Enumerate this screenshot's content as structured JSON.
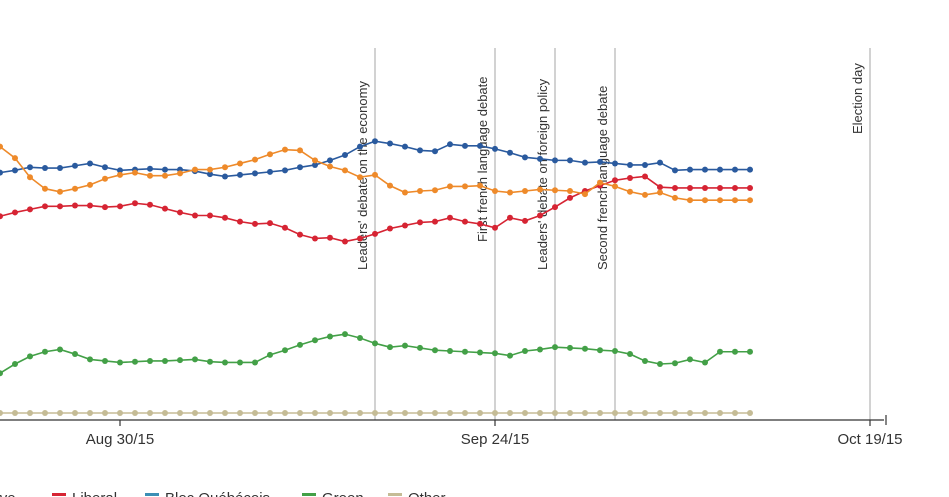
{
  "chart_data": {
    "type": "line",
    "title": "",
    "xlabel": "",
    "ylabel": "",
    "x_tick_labels": [
      "Aug 30/15",
      "Sep 24/15",
      "Oct 19/15"
    ],
    "x_tick_days": [
      27,
      52,
      77
    ],
    "x_range_days": [
      19,
      78
    ],
    "ylim": [
      0,
      45
    ],
    "grid": false,
    "events": [
      {
        "day": 44,
        "label": "Leaders' debate on the economy"
      },
      {
        "day": 52,
        "label": "First french language debate"
      },
      {
        "day": 56,
        "label": "Leaders' debate on foreign policy"
      },
      {
        "day": 60,
        "label": "Second french language debate"
      },
      {
        "day": 77,
        "label": "Election day"
      }
    ],
    "x_days": [
      19,
      20,
      21,
      22,
      23,
      24,
      25,
      26,
      27,
      28,
      29,
      30,
      31,
      32,
      33,
      34,
      35,
      36,
      37,
      38,
      39,
      40,
      41,
      42,
      43,
      44,
      45,
      46,
      47,
      48,
      49,
      50,
      51,
      52,
      53,
      54,
      55,
      56,
      57,
      58,
      59,
      60,
      61,
      62,
      63,
      64,
      65,
      66,
      67,
      68,
      69
    ],
    "legend_position": "bottom",
    "series": [
      {
        "name": "Conservative",
        "color": "#2a5a9e",
        "values": [
          32.2,
          32.5,
          32.9,
          32.8,
          32.8,
          33.1,
          33.4,
          32.9,
          32.5,
          32.6,
          32.7,
          32.6,
          32.6,
          32.4,
          32.0,
          31.7,
          31.9,
          32.1,
          32.3,
          32.5,
          32.9,
          33.2,
          33.8,
          34.5,
          35.6,
          36.3,
          36.0,
          35.6,
          35.1,
          35.0,
          35.9,
          35.7,
          35.7,
          35.3,
          34.8,
          34.2,
          34.0,
          33.8,
          33.8,
          33.5,
          33.6,
          33.4,
          33.2,
          33.2,
          33.5,
          32.5,
          32.6,
          32.6,
          32.6,
          32.6,
          32.6
        ]
      },
      {
        "name": "Liberal",
        "color": "#d62433",
        "values": [
          26.5,
          27.0,
          27.4,
          27.8,
          27.8,
          27.9,
          27.9,
          27.7,
          27.8,
          28.2,
          28.0,
          27.5,
          27.0,
          26.6,
          26.6,
          26.3,
          25.8,
          25.5,
          25.6,
          25.0,
          24.1,
          23.6,
          23.7,
          23.2,
          23.6,
          24.2,
          24.9,
          25.3,
          25.7,
          25.8,
          26.3,
          25.8,
          25.5,
          25.0,
          26.3,
          25.9,
          26.6,
          27.7,
          28.9,
          29.8,
          30.5,
          31.2,
          31.5,
          31.7,
          30.3,
          30.2,
          30.2,
          30.2,
          30.2,
          30.2,
          30.2
        ]
      },
      {
        "name": "NDP",
        "color": "#ee8a2a",
        "values": [
          35.6,
          34.1,
          31.6,
          30.1,
          29.7,
          30.1,
          30.6,
          31.4,
          31.9,
          32.2,
          31.8,
          31.8,
          32.1,
          32.6,
          32.6,
          32.9,
          33.4,
          33.9,
          34.6,
          35.2,
          35.1,
          33.8,
          33.0,
          32.5,
          31.6,
          31.9,
          30.5,
          29.6,
          29.8,
          29.9,
          30.4,
          30.4,
          30.5,
          29.8,
          29.6,
          29.8,
          30.0,
          29.9,
          29.8,
          29.4,
          30.9,
          30.4,
          29.7,
          29.3,
          29.6,
          28.9,
          28.6,
          28.6,
          28.6,
          28.6,
          28.6
        ]
      },
      {
        "name": "Bloc Québécois",
        "color": "#3b8fb5",
        "values": []
      },
      {
        "name": "Green",
        "color": "#43a047",
        "values": [
          6.0,
          7.2,
          8.2,
          8.8,
          9.1,
          8.5,
          7.8,
          7.6,
          7.4,
          7.5,
          7.6,
          7.6,
          7.7,
          7.8,
          7.5,
          7.4,
          7.4,
          7.4,
          8.4,
          9.0,
          9.7,
          10.3,
          10.8,
          11.1,
          10.6,
          9.9,
          9.4,
          9.6,
          9.3,
          9.0,
          8.9,
          8.8,
          8.7,
          8.6,
          8.3,
          8.9,
          9.1,
          9.4,
          9.3,
          9.2,
          9.0,
          8.9,
          8.5,
          7.6,
          7.2,
          7.3,
          7.8,
          7.4,
          8.8,
          8.8,
          8.8
        ]
      },
      {
        "name": "Other",
        "color": "#c5bc96",
        "values": [
          0.8,
          0.8,
          0.8,
          0.8,
          0.8,
          0.8,
          0.8,
          0.8,
          0.8,
          0.8,
          0.8,
          0.8,
          0.8,
          0.8,
          0.8,
          0.8,
          0.8,
          0.8,
          0.8,
          0.8,
          0.8,
          0.8,
          0.8,
          0.8,
          0.8,
          0.8,
          0.8,
          0.8,
          0.8,
          0.8,
          0.8,
          0.8,
          0.8,
          0.8,
          0.8,
          0.8,
          0.8,
          0.8,
          0.8,
          0.8,
          0.8,
          0.8,
          0.8,
          0.8,
          0.8,
          0.8,
          0.8,
          0.8,
          0.8,
          0.8,
          0.8
        ]
      }
    ]
  }
}
